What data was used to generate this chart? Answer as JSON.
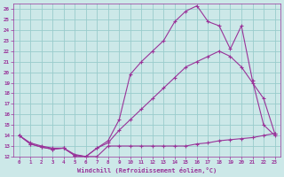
{
  "xlabel": "Windchill (Refroidissement éolien,°C)",
  "background_color": "#cce8e8",
  "grid_color": "#99cccc",
  "line_color": "#993399",
  "xlim": [
    -0.5,
    23.5
  ],
  "ylim": [
    12,
    26.5
  ],
  "yticks": [
    12,
    13,
    14,
    15,
    16,
    17,
    18,
    19,
    20,
    21,
    22,
    23,
    24,
    25,
    26
  ],
  "xticks": [
    0,
    1,
    2,
    3,
    4,
    5,
    6,
    7,
    8,
    9,
    10,
    11,
    12,
    13,
    14,
    15,
    16,
    17,
    18,
    19,
    20,
    21,
    22,
    23
  ],
  "line1_x": [
    0,
    1,
    2,
    3,
    4,
    5,
    6,
    7,
    8,
    9,
    10,
    11,
    12,
    13,
    14,
    15,
    16,
    17,
    18,
    19,
    20,
    21,
    22,
    23
  ],
  "line1_y": [
    14.0,
    13.3,
    13.0,
    12.8,
    12.8,
    12.2,
    12.0,
    12.0,
    13.0,
    13.0,
    13.0,
    13.0,
    13.0,
    13.0,
    13.0,
    13.0,
    13.2,
    13.3,
    13.5,
    13.6,
    13.7,
    13.8,
    14.0,
    14.2
  ],
  "line2_x": [
    0,
    1,
    2,
    3,
    4,
    5,
    6,
    7,
    8,
    9,
    10,
    11,
    12,
    13,
    14,
    15,
    16,
    17,
    18,
    19,
    20,
    21,
    22,
    23
  ],
  "line2_y": [
    14.0,
    13.2,
    12.9,
    12.7,
    12.8,
    12.1,
    12.0,
    12.8,
    13.3,
    14.5,
    15.5,
    16.5,
    17.5,
    18.5,
    19.5,
    20.5,
    21.0,
    21.5,
    22.0,
    21.5,
    20.5,
    19.0,
    17.5,
    14.2
  ],
  "line3_x": [
    0,
    1,
    2,
    3,
    4,
    5,
    6,
    7,
    8,
    9,
    10,
    11,
    12,
    13,
    14,
    15,
    16,
    17,
    18,
    19,
    20,
    21,
    22,
    23
  ],
  "line3_y": [
    14.0,
    13.2,
    12.9,
    12.7,
    12.8,
    12.1,
    12.0,
    12.8,
    13.5,
    15.5,
    19.8,
    21.0,
    22.0,
    23.0,
    24.8,
    25.8,
    26.3,
    24.8,
    24.4,
    22.2,
    24.4,
    19.2,
    15.0,
    14.0
  ]
}
